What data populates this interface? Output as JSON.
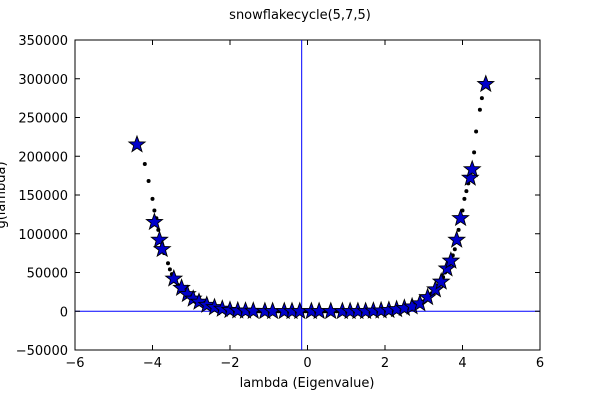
{
  "chart_data": {
    "type": "scatter",
    "title": "snowflakecycle(5,7,5)",
    "xlabel": "lambda (Eigenvalue)",
    "ylabel": "g(lambda)",
    "xlim": [
      -6,
      6
    ],
    "ylim": [
      -50000,
      350000
    ],
    "xticks": [
      "−6",
      "−4",
      "−2",
      "0",
      "2",
      "4",
      "6"
    ],
    "xtick_values": [
      -6,
      -4,
      -2,
      0,
      2,
      4,
      6
    ],
    "yticks": [
      "−50000",
      "0",
      "50000",
      "100000",
      "150000",
      "200000",
      "250000",
      "300000",
      "350000"
    ],
    "ytick_values": [
      -50000,
      0,
      50000,
      100000,
      150000,
      200000,
      250000,
      300000,
      350000
    ],
    "reference_lines": {
      "vertical_x": -0.15,
      "horizontal_y": 0
    },
    "colors": {
      "reference_line": "#0000ff",
      "star_fill": "#0000cc",
      "dot_fill": "#000000"
    },
    "series": [
      {
        "marker": "star",
        "points": [
          [
            -4.4,
            215000
          ],
          [
            -3.95,
            115000
          ],
          [
            -3.82,
            92000
          ],
          [
            -3.75,
            80000
          ],
          [
            -3.45,
            42000
          ],
          [
            -3.25,
            30000
          ],
          [
            -3.1,
            22000
          ],
          [
            -2.95,
            16000
          ],
          [
            -2.8,
            12000
          ],
          [
            -2.6,
            8000
          ],
          [
            -2.4,
            5000
          ],
          [
            -2.2,
            3000
          ],
          [
            -2.0,
            1500
          ],
          [
            -1.8,
            800
          ],
          [
            -1.6,
            500
          ],
          [
            -1.4,
            300
          ],
          [
            -1.1,
            0
          ],
          [
            -0.9,
            0
          ],
          [
            -0.6,
            0
          ],
          [
            -0.4,
            0
          ],
          [
            -0.2,
            0
          ],
          [
            0.1,
            0
          ],
          [
            0.3,
            0
          ],
          [
            0.6,
            0
          ],
          [
            0.9,
            0
          ],
          [
            1.1,
            0
          ],
          [
            1.3,
            0
          ],
          [
            1.5,
            0
          ],
          [
            1.7,
            500
          ],
          [
            1.9,
            800
          ],
          [
            2.1,
            1500
          ],
          [
            2.3,
            2500
          ],
          [
            2.5,
            4000
          ],
          [
            2.7,
            6000
          ],
          [
            2.9,
            10000
          ],
          [
            3.1,
            18000
          ],
          [
            3.3,
            28000
          ],
          [
            3.45,
            38000
          ],
          [
            3.6,
            55000
          ],
          [
            3.7,
            65000
          ],
          [
            3.85,
            92000
          ],
          [
            3.95,
            120000
          ],
          [
            4.2,
            172000
          ],
          [
            4.25,
            183000
          ],
          [
            4.6,
            293000
          ]
        ]
      },
      {
        "marker": "dot",
        "points": [
          [
            -4.2,
            190000
          ],
          [
            -4.1,
            168000
          ],
          [
            -4.0,
            145000
          ],
          [
            -3.95,
            130000
          ],
          [
            -3.9,
            120000
          ],
          [
            -3.85,
            105000
          ],
          [
            -3.7,
            75000
          ],
          [
            -3.6,
            62000
          ],
          [
            -3.55,
            54000
          ],
          [
            -3.5,
            48000
          ],
          [
            -3.4,
            38000
          ],
          [
            -3.35,
            34000
          ],
          [
            -3.2,
            27000
          ],
          [
            -3.15,
            24000
          ],
          [
            -3.05,
            19000
          ],
          [
            -3.0,
            17000
          ],
          [
            -2.9,
            14000
          ],
          [
            -2.85,
            12500
          ],
          [
            -2.75,
            10500
          ],
          [
            -2.7,
            9500
          ],
          [
            -2.65,
            8500
          ],
          [
            -2.55,
            7000
          ],
          [
            -2.5,
            6000
          ],
          [
            -2.45,
            5500
          ],
          [
            -2.35,
            4500
          ],
          [
            -2.3,
            4000
          ],
          [
            -2.25,
            3500
          ],
          [
            -2.15,
            2800
          ],
          [
            -2.1,
            2300
          ],
          [
            -2.05,
            1900
          ],
          [
            -1.95,
            1400
          ],
          [
            -1.9,
            1200
          ],
          [
            -1.85,
            1000
          ],
          [
            -1.75,
            700
          ],
          [
            -1.7,
            600
          ],
          [
            -1.65,
            500
          ],
          [
            -1.55,
            400
          ],
          [
            -1.5,
            300
          ],
          [
            -1.45,
            250
          ],
          [
            -1.35,
            200
          ],
          [
            -1.3,
            150
          ],
          [
            -1.25,
            100
          ],
          [
            -1.2,
            100
          ],
          [
            -1.15,
            50
          ],
          [
            -1.05,
            0
          ],
          [
            -1.0,
            0
          ],
          [
            -0.95,
            0
          ],
          [
            -0.85,
            0
          ],
          [
            -0.8,
            0
          ],
          [
            -0.75,
            0
          ],
          [
            -0.7,
            0
          ],
          [
            -0.65,
            0
          ],
          [
            -0.55,
            0
          ],
          [
            -0.5,
            0
          ],
          [
            -0.45,
            0
          ],
          [
            -0.35,
            0
          ],
          [
            -0.3,
            0
          ],
          [
            -0.25,
            0
          ],
          [
            -0.1,
            0
          ],
          [
            -0.05,
            0
          ],
          [
            0.0,
            0
          ],
          [
            0.05,
            0
          ],
          [
            0.15,
            0
          ],
          [
            0.2,
            0
          ],
          [
            0.25,
            0
          ],
          [
            0.35,
            0
          ],
          [
            0.4,
            0
          ],
          [
            0.45,
            0
          ],
          [
            0.5,
            0
          ],
          [
            0.55,
            0
          ],
          [
            0.65,
            0
          ],
          [
            0.7,
            0
          ],
          [
            0.75,
            0
          ],
          [
            0.8,
            0
          ],
          [
            0.85,
            0
          ],
          [
            0.95,
            0
          ],
          [
            1.0,
            0
          ],
          [
            1.05,
            0
          ],
          [
            1.15,
            0
          ],
          [
            1.2,
            0
          ],
          [
            1.25,
            0
          ],
          [
            1.35,
            0
          ],
          [
            1.4,
            0
          ],
          [
            1.45,
            0
          ],
          [
            1.55,
            100
          ],
          [
            1.6,
            200
          ],
          [
            1.65,
            300
          ],
          [
            1.75,
            500
          ],
          [
            1.8,
            600
          ],
          [
            1.85,
            700
          ],
          [
            1.95,
            1000
          ],
          [
            2.0,
            1200
          ],
          [
            2.05,
            1400
          ],
          [
            2.15,
            1800
          ],
          [
            2.2,
            2100
          ],
          [
            2.25,
            2300
          ],
          [
            2.35,
            2800
          ],
          [
            2.4,
            3300
          ],
          [
            2.45,
            3700
          ],
          [
            2.55,
            4600
          ],
          [
            2.6,
            5200
          ],
          [
            2.65,
            5700
          ],
          [
            2.75,
            7200
          ],
          [
            2.8,
            8000
          ],
          [
            2.85,
            9000
          ],
          [
            2.95,
            11500
          ],
          [
            3.0,
            13000
          ],
          [
            3.05,
            15000
          ],
          [
            3.15,
            20000
          ],
          [
            3.2,
            23000
          ],
          [
            3.25,
            25500
          ],
          [
            3.35,
            31000
          ],
          [
            3.4,
            35000
          ],
          [
            3.5,
            44000
          ],
          [
            3.55,
            50000
          ],
          [
            3.65,
            60000
          ],
          [
            3.75,
            72000
          ],
          [
            3.8,
            80000
          ],
          [
            3.9,
            105000
          ],
          [
            4.0,
            130000
          ],
          [
            4.05,
            145000
          ],
          [
            4.1,
            155000
          ],
          [
            4.15,
            165000
          ],
          [
            4.3,
            205000
          ],
          [
            4.35,
            232000
          ],
          [
            4.45,
            260000
          ],
          [
            4.5,
            275000
          ]
        ]
      }
    ]
  }
}
